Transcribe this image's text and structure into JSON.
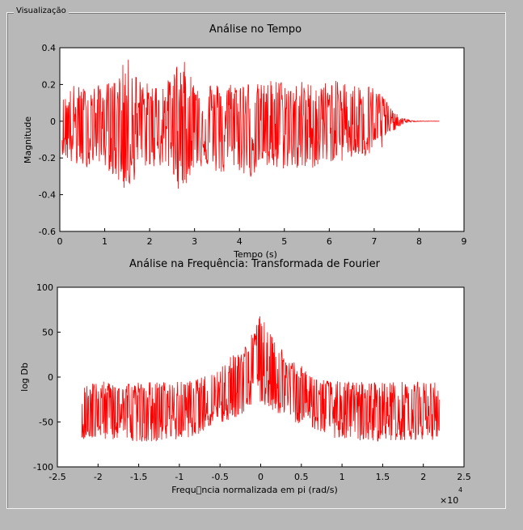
{
  "panel": {
    "title": "Visualização"
  },
  "chart_data": [
    {
      "type": "line",
      "title": "Análise no Tempo",
      "xlabel": "Tempo (s)",
      "ylabel": "Magnitude",
      "xlim": [
        0,
        9
      ],
      "ylim": [
        -0.6,
        0.4
      ],
      "xticks": [
        0,
        1,
        2,
        3,
        4,
        5,
        6,
        7,
        8,
        9
      ],
      "yticks": [
        -0.6,
        -0.4,
        -0.2,
        0,
        0.2,
        0.4
      ],
      "ytick_labels": [
        "-0.6",
        "-0.4",
        "-0.2",
        "0",
        "0.2",
        "0.4"
      ],
      "color": "#ff0000",
      "series": [
        {
          "x": [
            0.05,
            0.3,
            0.6,
            0.9,
            1.2,
            1.5,
            1.8,
            2.1,
            2.4,
            2.7,
            3.0,
            3.3,
            3.6,
            3.9,
            4.2,
            4.5,
            4.8,
            5.1,
            5.4,
            5.7,
            6.0,
            6.3,
            6.6,
            6.9,
            7.2,
            7.4,
            7.6,
            7.8,
            8.0,
            8.2,
            8.45
          ],
          "envelope_max": [
            0.12,
            0.2,
            0.18,
            0.2,
            0.22,
            0.35,
            0.22,
            0.2,
            0.22,
            0.36,
            0.22,
            0.22,
            0.2,
            0.22,
            0.22,
            0.2,
            0.24,
            0.2,
            0.22,
            0.2,
            0.22,
            0.22,
            0.2,
            0.2,
            0.15,
            0.06,
            0.02,
            0.005,
            0.002,
            0.001,
            0.0
          ],
          "envelope_min": [
            -0.18,
            -0.25,
            -0.25,
            -0.22,
            -0.3,
            -0.4,
            -0.25,
            -0.25,
            -0.25,
            -0.4,
            -0.25,
            -0.25,
            -0.3,
            -0.25,
            -0.32,
            -0.25,
            -0.28,
            -0.25,
            -0.28,
            -0.25,
            -0.22,
            -0.22,
            -0.2,
            -0.2,
            -0.15,
            -0.06,
            -0.02,
            -0.005,
            -0.002,
            -0.001,
            0.0
          ]
        }
      ]
    },
    {
      "type": "line",
      "title": "Análise na Frequência: Transformada de Fourier",
      "xlabel": "Frequ\u0000ncia normalizada em pi (rad/s)",
      "ylabel": "log Db",
      "xlim": [
        -2.5,
        2.5
      ],
      "ylim": [
        -100,
        100
      ],
      "x_multiplier": "×10",
      "x_multiplier_exp": "4",
      "xticks": [
        -2.5,
        -2,
        -1.5,
        -1,
        -0.5,
        0,
        0.5,
        1,
        1.5,
        2,
        2.5
      ],
      "xtick_labels": [
        "-2.5",
        "-2",
        "-1.5",
        "-1",
        "-0.5",
        "0",
        "0.5",
        "1",
        "1.5",
        "2",
        "2.5"
      ],
      "yticks": [
        -100,
        -50,
        0,
        50,
        100
      ],
      "ytick_labels": [
        "-100",
        "-50",
        "0",
        "50",
        "100"
      ],
      "color": "#ff0000",
      "series": [
        {
          "x": [
            -2.2,
            -1.8,
            -1.4,
            -1.0,
            -0.8,
            -0.6,
            -0.4,
            -0.3,
            -0.2,
            -0.1,
            0.0,
            0.1,
            0.2,
            0.3,
            0.4,
            0.6,
            0.8,
            1.0,
            1.4,
            1.8,
            2.2
          ],
          "envelope_max": [
            -5,
            -5,
            -5,
            -5,
            -3,
            5,
            20,
            30,
            35,
            50,
            72,
            50,
            38,
            30,
            20,
            5,
            -3,
            -5,
            -5,
            -5,
            -5
          ],
          "envelope_min": [
            -70,
            -70,
            -72,
            -70,
            -65,
            -55,
            -50,
            -45,
            -40,
            -35,
            -30,
            -35,
            -40,
            -45,
            -50,
            -55,
            -65,
            -70,
            -72,
            -70,
            -70
          ]
        }
      ]
    }
  ]
}
